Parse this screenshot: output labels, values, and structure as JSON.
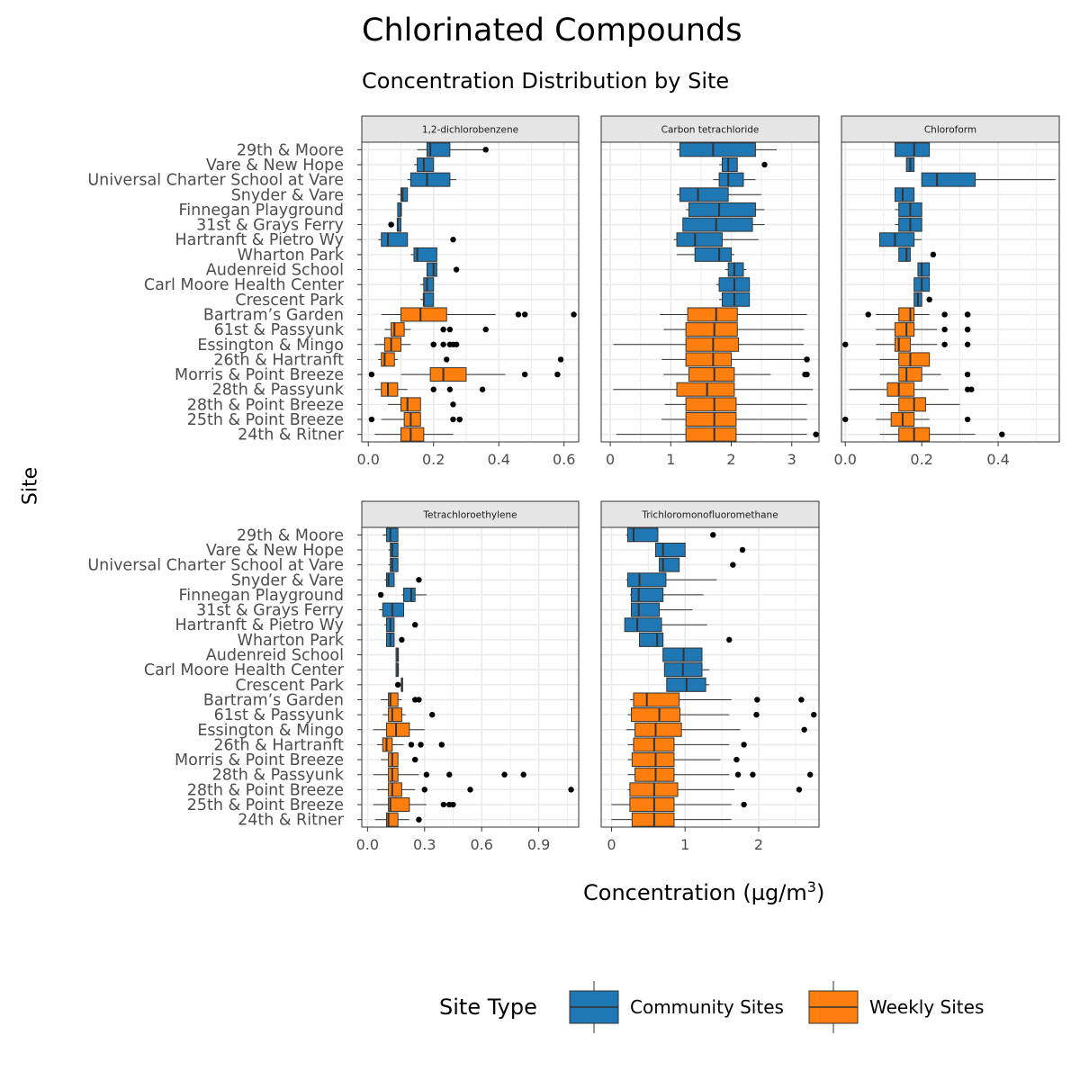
{
  "page": {
    "title": "Chlorinated Compounds",
    "subtitle": "Concentration Distribution by Site",
    "y_axis_label": "Site",
    "x_axis_label": "Concentration (µg/m",
    "x_axis_label_sup": "3",
    "x_axis_label_end": ")"
  },
  "legend": {
    "title": "Site Type",
    "items": [
      {
        "label": "Community Sites",
        "color": "#1f77b4"
      },
      {
        "label": "Weekly Sites",
        "color": "#ff7f0e"
      }
    ]
  },
  "colors": {
    "community": "#1f77b4",
    "weekly": "#ff7f0e",
    "strip_bg": "#e5e5e5",
    "grid": "#ebebeb",
    "panel_border": "#333333"
  },
  "chart_data": {
    "type": "boxplot",
    "orientation": "horizontal",
    "facet_layout": "3 columns, 2 rows, shared y (sites), free x",
    "sites": [
      "29th & Moore",
      "Vare & New Hope",
      "Universal Charter School at Vare",
      "Snyder & Vare",
      "Finnegan Playground",
      "31st & Grays Ferry",
      "Hartranft & Pietro Wy",
      "Wharton Park",
      "Audenreid School",
      "Carl Moore Health Center",
      "Crescent Park",
      "Bartram’s Garden",
      "61st & Passyunk",
      "Essington & Mingo",
      "26th & Hartranft",
      "Morris & Point Breeze",
      "28th & Passyunk",
      "28th & Point Breeze",
      "25th & Point Breeze",
      "24th & Ritner"
    ],
    "site_types": [
      "Community Sites",
      "Community Sites",
      "Community Sites",
      "Community Sites",
      "Community Sites",
      "Community Sites",
      "Community Sites",
      "Community Sites",
      "Community Sites",
      "Community Sites",
      "Community Sites",
      "Weekly Sites",
      "Weekly Sites",
      "Weekly Sites",
      "Weekly Sites",
      "Weekly Sites",
      "Weekly Sites",
      "Weekly Sites",
      "Weekly Sites",
      "Weekly Sites"
    ],
    "panels": [
      {
        "name": "1,2-dichlorobenzene",
        "xlim": [
          -0.02,
          0.645
        ],
        "xticks": [
          0,
          0.2,
          0.4,
          0.6
        ],
        "xtick_labels": [
          "0.0",
          "0.2",
          "0.4",
          "0.6"
        ],
        "boxes": [
          [
            0.15,
            0.18,
            0.19,
            0.25,
            0.36,
            [
              0.36
            ]
          ],
          [
            0.14,
            0.15,
            0.17,
            0.2,
            0.2,
            []
          ],
          [
            0.12,
            0.13,
            0.18,
            0.25,
            0.27,
            []
          ],
          [
            0.09,
            0.1,
            0.105,
            0.12,
            0.12,
            []
          ],
          [
            0.09,
            0.09,
            0.1,
            0.1,
            0.1,
            []
          ],
          [
            0.09,
            0.09,
            0.09,
            0.1,
            0.1,
            [
              0.07
            ]
          ],
          [
            0.03,
            0.04,
            0.06,
            0.12,
            0.12,
            [
              0.26
            ]
          ],
          [
            0.13,
            0.14,
            0.15,
            0.21,
            0.21,
            []
          ],
          [
            0.18,
            0.18,
            0.2,
            0.21,
            0.21,
            [
              0.27
            ]
          ],
          [
            0.16,
            0.17,
            0.18,
            0.2,
            0.2,
            []
          ],
          [
            0.16,
            0.17,
            0.17,
            0.2,
            0.2,
            []
          ],
          [
            0.04,
            0.1,
            0.16,
            0.24,
            0.39,
            [
              0.46,
              0.48,
              0.63
            ]
          ],
          [
            0.05,
            0.07,
            0.08,
            0.11,
            0.13,
            [
              0.23,
              0.25,
              0.36
            ]
          ],
          [
            0.02,
            0.05,
            0.07,
            0.1,
            0.13,
            [
              0.2,
              0.2,
              0.23,
              0.25,
              0.26,
              0.27
            ]
          ],
          [
            0.03,
            0.04,
            0.05,
            0.08,
            0.09,
            [
              0.24,
              0.59
            ]
          ],
          [
            0.1,
            0.19,
            0.23,
            0.3,
            0.42,
            [
              0.01,
              0.48,
              0.58
            ]
          ],
          [
            0.02,
            0.04,
            0.06,
            0.09,
            0.12,
            [
              0.2,
              0.25,
              0.35
            ]
          ],
          [
            0.06,
            0.1,
            0.12,
            0.16,
            0.16,
            [
              0.26
            ]
          ],
          [
            0.04,
            0.11,
            0.13,
            0.16,
            0.16,
            [
              0.01,
              0.26,
              0.28,
              0.28
            ]
          ],
          [
            0.02,
            0.1,
            0.13,
            0.17,
            0.26,
            []
          ]
        ]
      },
      {
        "name": "Carbon tetrachloride",
        "xlim": [
          -0.15,
          3.45
        ],
        "xticks": [
          0,
          1,
          2,
          3
        ],
        "xtick_labels": [
          "0",
          "1",
          "2",
          "3"
        ],
        "boxes": [
          [
            1.1,
            1.15,
            1.7,
            2.4,
            2.75,
            []
          ],
          [
            1.8,
            1.85,
            1.95,
            2.1,
            2.1,
            [
              2.55
            ]
          ],
          [
            1.7,
            1.8,
            1.95,
            2.2,
            2.4,
            []
          ],
          [
            1.1,
            1.15,
            1.45,
            1.95,
            2.5,
            []
          ],
          [
            1.25,
            1.3,
            1.8,
            2.4,
            2.55,
            []
          ],
          [
            1.2,
            1.2,
            1.75,
            2.35,
            2.55,
            []
          ],
          [
            1.05,
            1.1,
            1.4,
            1.85,
            2.45,
            []
          ],
          [
            1.1,
            1.4,
            1.8,
            2.0,
            2.05,
            []
          ],
          [
            1.9,
            1.95,
            2.05,
            2.2,
            2.25,
            []
          ],
          [
            1.75,
            1.8,
            2.05,
            2.3,
            2.3,
            []
          ],
          [
            1.8,
            1.85,
            2.05,
            2.3,
            2.3,
            []
          ],
          [
            0.82,
            1.28,
            1.75,
            2.1,
            3.25,
            []
          ],
          [
            0.88,
            1.25,
            1.72,
            2.1,
            3.2,
            []
          ],
          [
            0.05,
            1.25,
            1.7,
            2.12,
            3.2,
            []
          ],
          [
            0.85,
            1.25,
            1.7,
            2.0,
            3.25,
            [
              3.25,
              3.25
            ]
          ],
          [
            0.88,
            1.3,
            1.72,
            2.05,
            2.65,
            [
              3.22,
              3.25
            ]
          ],
          [
            0.05,
            1.1,
            1.6,
            2.05,
            3.35,
            []
          ],
          [
            0.9,
            1.25,
            1.72,
            2.08,
            3.25,
            []
          ],
          [
            0.85,
            1.25,
            1.72,
            2.08,
            3.25,
            []
          ],
          [
            0.1,
            1.25,
            1.72,
            2.08,
            3.25,
            [
              3.4
            ]
          ]
        ]
      },
      {
        "name": "Chloroform",
        "xlim": [
          -0.01,
          0.56
        ],
        "xticks": [
          0,
          0.2,
          0.4
        ],
        "xtick_labels": [
          "0.0",
          "0.2",
          "0.4"
        ],
        "boxes": [
          [
            0.13,
            0.13,
            0.18,
            0.22,
            0.22,
            []
          ],
          [
            0.16,
            0.16,
            0.17,
            0.18,
            0.18,
            []
          ],
          [
            0.2,
            0.2,
            0.24,
            0.34,
            0.55,
            []
          ],
          [
            0.13,
            0.13,
            0.15,
            0.18,
            0.18,
            []
          ],
          [
            0.13,
            0.14,
            0.17,
            0.2,
            0.2,
            []
          ],
          [
            0.13,
            0.14,
            0.17,
            0.2,
            0.2,
            []
          ],
          [
            0.09,
            0.09,
            0.13,
            0.18,
            0.2,
            []
          ],
          [
            0.14,
            0.14,
            0.16,
            0.17,
            0.17,
            [
              0.23
            ]
          ],
          [
            0.19,
            0.19,
            0.2,
            0.22,
            0.22,
            []
          ],
          [
            0.18,
            0.18,
            0.2,
            0.22,
            0.22,
            []
          ],
          [
            0.18,
            0.18,
            0.19,
            0.2,
            0.2,
            [
              0.22
            ]
          ],
          [
            0.08,
            0.14,
            0.17,
            0.18,
            0.22,
            [
              0.06,
              0.26,
              0.32,
              0.32
            ]
          ],
          [
            0.08,
            0.13,
            0.16,
            0.18,
            0.24,
            [
              0.26,
              0.32,
              0.32
            ]
          ],
          [
            0.08,
            0.13,
            0.14,
            0.17,
            0.24,
            [
              0.0,
              0.26,
              0.32
            ]
          ],
          [
            0.09,
            0.14,
            0.17,
            0.22,
            0.22,
            []
          ],
          [
            0.09,
            0.14,
            0.16,
            0.2,
            0.25,
            [
              0.32
            ]
          ],
          [
            0.01,
            0.11,
            0.14,
            0.18,
            0.27,
            [
              0.32,
              0.33
            ]
          ],
          [
            0.09,
            0.14,
            0.18,
            0.21,
            0.3,
            []
          ],
          [
            0.08,
            0.12,
            0.15,
            0.18,
            0.22,
            [
              0.0,
              0.32
            ]
          ],
          [
            0.09,
            0.14,
            0.18,
            0.22,
            0.34,
            [
              0.41
            ]
          ]
        ]
      },
      {
        "name": "Tetrachloroethylene",
        "xlim": [
          -0.03,
          1.11
        ],
        "xticks": [
          0,
          0.3,
          0.6,
          0.9
        ],
        "xtick_labels": [
          "0.0",
          "0.3",
          "0.6",
          "0.9"
        ],
        "boxes": [
          [
            0.08,
            0.1,
            0.12,
            0.16,
            0.16,
            []
          ],
          [
            0.11,
            0.12,
            0.13,
            0.16,
            0.16,
            []
          ],
          [
            0.11,
            0.12,
            0.13,
            0.16,
            0.16,
            []
          ],
          [
            0.09,
            0.1,
            0.11,
            0.14,
            0.14,
            [
              0.27
            ]
          ],
          [
            0.18,
            0.19,
            0.23,
            0.25,
            0.31,
            [
              0.07
            ]
          ],
          [
            0.06,
            0.08,
            0.13,
            0.19,
            0.19,
            []
          ],
          [
            0.09,
            0.1,
            0.12,
            0.14,
            0.14,
            [
              0.25
            ]
          ],
          [
            0.1,
            0.1,
            0.12,
            0.14,
            0.14,
            [
              0.18
            ]
          ],
          [
            0.15,
            0.15,
            0.16,
            0.16,
            0.16,
            []
          ],
          [
            0.15,
            0.15,
            0.16,
            0.16,
            0.16,
            []
          ],
          [
            0.16,
            0.18,
            0.18,
            0.18,
            0.18,
            [
              0.16
            ]
          ],
          [
            0.07,
            0.11,
            0.12,
            0.16,
            0.18,
            [
              0.25,
              0.27
            ]
          ],
          [
            0.08,
            0.11,
            0.13,
            0.18,
            0.2,
            [
              0.34
            ]
          ],
          [
            0.03,
            0.1,
            0.15,
            0.22,
            0.3,
            []
          ],
          [
            0.05,
            0.08,
            0.1,
            0.13,
            0.19,
            [
              0.23,
              0.28,
              0.39
            ]
          ],
          [
            0.07,
            0.11,
            0.13,
            0.16,
            0.16,
            [
              0.25
            ]
          ],
          [
            0.03,
            0.11,
            0.13,
            0.16,
            0.27,
            [
              0.31,
              0.43,
              0.72,
              0.82
            ]
          ],
          [
            0.05,
            0.11,
            0.13,
            0.18,
            0.25,
            [
              0.3,
              0.54,
              1.07
            ]
          ],
          [
            0.03,
            0.11,
            0.12,
            0.22,
            0.31,
            [
              0.4,
              0.43,
              0.45
            ]
          ],
          [
            0.04,
            0.1,
            0.11,
            0.16,
            0.22,
            [
              0.27
            ]
          ]
        ]
      },
      {
        "name": "Trichloromonofluoromethane",
        "xlim": [
          -0.14,
          2.82
        ],
        "xticks": [
          0,
          1,
          2
        ],
        "xtick_labels": [
          "0",
          "1",
          "2"
        ],
        "boxes": [
          [
            0.2,
            0.22,
            0.3,
            0.63,
            0.63,
            [
              1.38
            ]
          ],
          [
            0.6,
            0.6,
            0.7,
            1.0,
            1.0,
            [
              1.78
            ]
          ],
          [
            0.65,
            0.65,
            0.7,
            0.92,
            0.92,
            [
              1.65
            ]
          ],
          [
            0.2,
            0.22,
            0.38,
            0.74,
            1.43,
            []
          ],
          [
            0.25,
            0.27,
            0.37,
            0.7,
            1.25,
            []
          ],
          [
            0.27,
            0.27,
            0.37,
            0.65,
            1.1,
            []
          ],
          [
            0.18,
            0.18,
            0.35,
            0.68,
            1.3,
            []
          ],
          [
            0.38,
            0.38,
            0.62,
            0.7,
            0.7,
            [
              1.6
            ]
          ],
          [
            0.7,
            0.7,
            0.98,
            1.23,
            1.23,
            []
          ],
          [
            0.72,
            0.72,
            0.97,
            1.23,
            1.33,
            []
          ],
          [
            0.75,
            0.75,
            1.02,
            1.28,
            1.33,
            []
          ],
          [
            0.25,
            0.3,
            0.48,
            0.92,
            1.63,
            [
              1.98,
              2.58
            ]
          ],
          [
            0.22,
            0.27,
            0.65,
            0.93,
            1.6,
            [
              1.97,
              2.75
            ]
          ],
          [
            0.2,
            0.32,
            0.6,
            0.95,
            1.75,
            [
              2.62
            ]
          ],
          [
            0.22,
            0.3,
            0.58,
            0.85,
            1.6,
            [
              1.8
            ]
          ],
          [
            0.22,
            0.28,
            0.6,
            0.85,
            1.48,
            [
              1.7
            ]
          ],
          [
            0.22,
            0.32,
            0.6,
            0.85,
            1.6,
            [
              1.72,
              1.92,
              2.7
            ]
          ],
          [
            0.22,
            0.25,
            0.58,
            0.9,
            1.67,
            [
              2.55
            ]
          ],
          [
            0.0,
            0.25,
            0.58,
            0.85,
            1.63,
            [
              1.8
            ]
          ],
          [
            0.0,
            0.28,
            0.58,
            0.85,
            1.63,
            []
          ]
        ]
      }
    ]
  }
}
